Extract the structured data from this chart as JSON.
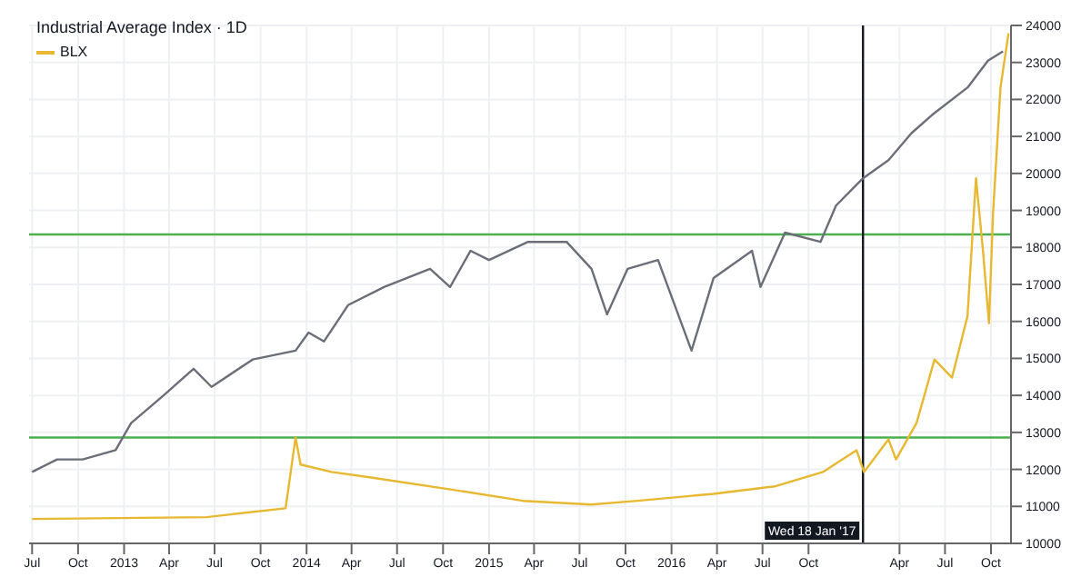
{
  "chart_data": {
    "type": "line",
    "title": "Industrial Average Index · 1D",
    "series": [
      {
        "color": "#6b6e78",
        "x": [
          "2012-07-01",
          "2012-08-20",
          "2012-10-10",
          "2012-12-15",
          "2013-01-15",
          "2013-03-20",
          "2013-05-20",
          "2013-06-25",
          "2013-09-15",
          "2013-12-10",
          "2014-01-05",
          "2014-02-05",
          "2014-03-25",
          "2014-06-05",
          "2014-09-05",
          "2014-10-15",
          "2014-11-25",
          "2015-01-01",
          "2015-03-20",
          "2015-06-05",
          "2015-07-25",
          "2015-08-25",
          "2015-10-05",
          "2015-12-05",
          "2016-02-10",
          "2016-03-25",
          "2016-06-10",
          "2016-06-27",
          "2016-08-15",
          "2016-10-25",
          "2016-11-25",
          "2017-01-18",
          "2017-03-10",
          "2017-04-25",
          "2017-06-05",
          "2017-08-15",
          "2017-09-25",
          "2017-10-25"
        ],
        "values": [
          11930,
          12270,
          12270,
          12520,
          13250,
          13990,
          14720,
          14230,
          14970,
          15210,
          15700,
          15460,
          16440,
          16930,
          17420,
          16930,
          17910,
          17660,
          18150,
          18150,
          17420,
          16190,
          17420,
          17660,
          15210,
          17170,
          17910,
          16930,
          18400,
          18150,
          19130,
          19870,
          20360,
          21090,
          21580,
          22320,
          23050,
          23300
        ]
      },
      {
        "name": "BLX",
        "color": "#e8b830",
        "x": [
          "2012-07-01",
          "2013-06-15",
          "2013-11-20",
          "2013-12-10",
          "2013-12-20",
          "2014-02-20",
          "2014-05-10",
          "2014-10-25",
          "2015-03-10",
          "2015-07-25",
          "2015-10-25",
          "2016-03-25",
          "2016-07-25",
          "2016-10-30",
          "2017-01-05",
          "2017-01-20",
          "2017-03-10",
          "2017-03-25",
          "2017-05-05",
          "2017-06-10",
          "2017-07-15",
          "2017-08-15",
          "2017-09-01",
          "2017-09-15",
          "2017-09-27",
          "2017-10-05",
          "2017-10-20",
          "2017-11-05"
        ],
        "values": [
          10660,
          10710,
          10950,
          12860,
          12130,
          11930,
          11780,
          11440,
          11150,
          11050,
          11150,
          11340,
          11540,
          11930,
          12520,
          11930,
          12810,
          12270,
          13250,
          14970,
          14480,
          16140,
          19870,
          17910,
          15950,
          18890,
          22320,
          23790
        ]
      }
    ],
    "xlim": [
      "2012-06-25",
      "2017-11-10"
    ],
    "xticks": [
      {
        "value": "2012-07-01",
        "label": "Jul"
      },
      {
        "value": "2012-10-01",
        "label": "Oct"
      },
      {
        "value": "2013-01-01",
        "label": "2013"
      },
      {
        "value": "2013-04-01",
        "label": "Apr"
      },
      {
        "value": "2013-07-01",
        "label": "Jul"
      },
      {
        "value": "2013-10-01",
        "label": "Oct"
      },
      {
        "value": "2014-01-01",
        "label": "2014"
      },
      {
        "value": "2014-04-01",
        "label": "Apr"
      },
      {
        "value": "2014-07-01",
        "label": "Jul"
      },
      {
        "value": "2014-10-01",
        "label": "Oct"
      },
      {
        "value": "2015-01-01",
        "label": "2015"
      },
      {
        "value": "2015-04-01",
        "label": "Apr"
      },
      {
        "value": "2015-07-01",
        "label": "Jul"
      },
      {
        "value": "2015-10-01",
        "label": "Oct"
      },
      {
        "value": "2016-01-01",
        "label": "2016"
      },
      {
        "value": "2016-04-01",
        "label": "Apr"
      },
      {
        "value": "2016-07-01",
        "label": "Jul"
      },
      {
        "value": "2016-10-01",
        "label": "Oct"
      },
      {
        "value": "2017-04-01",
        "label": "Apr"
      },
      {
        "value": "2017-07-01",
        "label": "Jul"
      },
      {
        "value": "2017-10-01",
        "label": "Oct"
      }
    ],
    "ylim": [
      10000,
      24000
    ],
    "yticks": [
      10000,
      11000,
      12000,
      13000,
      14000,
      15000,
      16000,
      17000,
      18000,
      19000,
      20000,
      21000,
      22000,
      23000,
      24000
    ],
    "grid": true,
    "ref_lines": [
      {
        "axis": "y",
        "value": 18350,
        "color": "#4caf50"
      },
      {
        "axis": "y",
        "value": 12860,
        "color": "#4caf50"
      },
      {
        "axis": "x",
        "value": "2017-01-18",
        "label": "Wed 18 Jan '17",
        "color": "#131722"
      }
    ]
  }
}
